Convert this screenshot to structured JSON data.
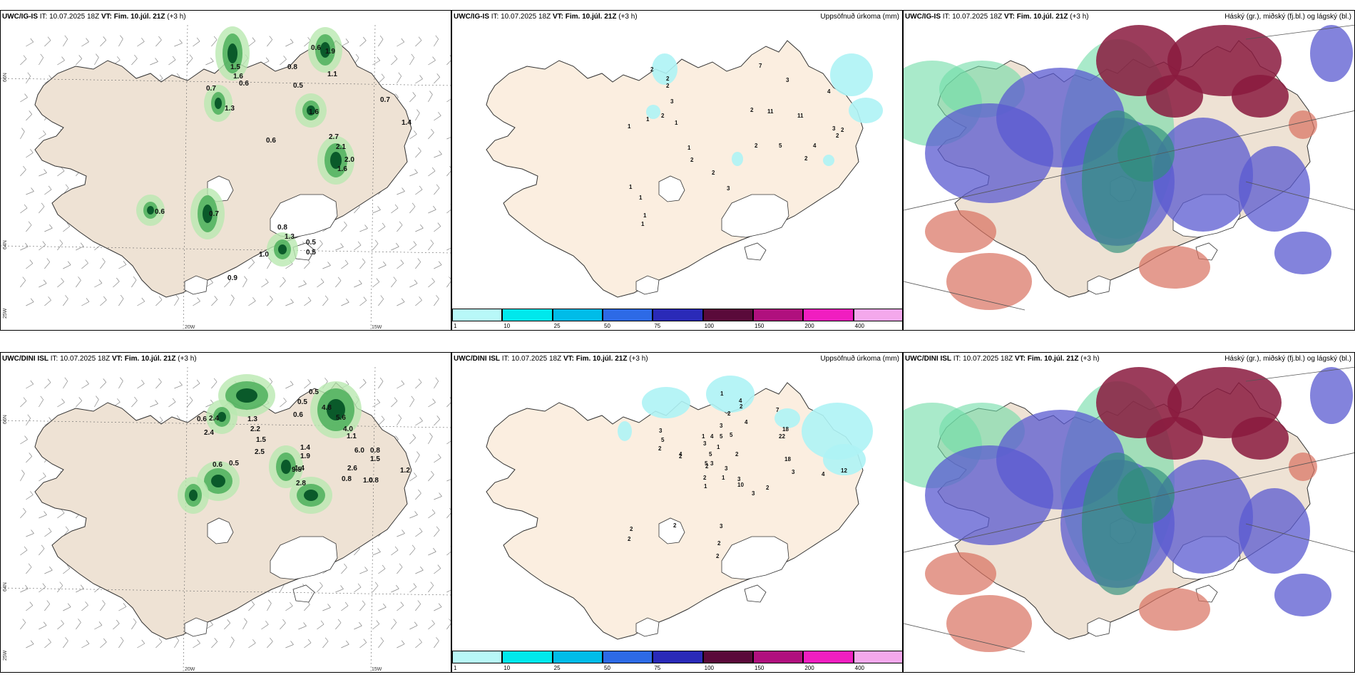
{
  "rows": [
    {
      "wind": {
        "model": "UWC/IG-IS",
        "run": "IT: 10.07.2025 18Z",
        "vt_label": "VT:",
        "vt": "Fim. 10.júl. 21Z",
        "lead": "(+3 h)"
      },
      "precip": {
        "model": "UWC/IG-IS",
        "run": "IT: 10.07.2025 18Z",
        "vt_label": "VT:",
        "vt": "Fim. 10.júl. 21Z",
        "lead": "(+3 h)",
        "right": "Uppsöfnuð úrkoma (mm)"
      },
      "cloud": {
        "model": "UWC/IG-IS",
        "run": "IT: 10.07.2025 18Z",
        "vt_label": "VT:",
        "vt": "Fim. 10.júl. 21Z",
        "lead": "(+3 h)",
        "right": "Háský (gr.), miðský (fj.bl.) og lágský (bl.)"
      },
      "wind_values": [
        "0.6",
        "1.9",
        "1.5",
        "1.6",
        "0.6",
        "0.8",
        "0.7",
        "0.5",
        "1.1",
        "1.3",
        "0.7",
        "1.6",
        "1.4",
        "0.6",
        "2.7",
        "2.1",
        "2.0",
        "1.6",
        "0.6",
        "0.7",
        "0.8",
        "1.3",
        "0.5",
        "0.5",
        "1.0",
        "0.9"
      ],
      "precip_values": [
        "2",
        "2",
        "2",
        "3",
        "1",
        "2",
        "1",
        "1",
        "7",
        "3",
        "4",
        "2",
        "11",
        "11",
        "2",
        "3",
        "4",
        "1",
        "2",
        "2",
        "5",
        "2",
        "2",
        "1",
        "1",
        "3",
        "2",
        "1",
        "1"
      ]
    },
    {
      "wind": {
        "model": "UWC/DINI ISL",
        "run": "IT: 10.07.2025 18Z",
        "vt_label": "VT:",
        "vt": "Fim. 10.júl. 21Z",
        "lead": "(+3 h)"
      },
      "precip": {
        "model": "UWC/DINI ISL",
        "run": "IT: 10.07.2025 18Z",
        "vt_label": "VT:",
        "vt": "Fim. 10.júl. 21Z",
        "lead": "(+3 h)",
        "right": "Uppsöfnuð úrkoma (mm)"
      },
      "cloud": {
        "model": "UWC/DINI ISL",
        "run": "IT: 10.07.2025 18Z",
        "vt_label": "VT:",
        "vt": "Fim. 10.júl. 21Z",
        "lead": "(+3 h)",
        "right": "Háský (gr.), miðský (fj.bl.) og lágský (bl.)"
      },
      "wind_values": [
        "0.5",
        "0.5",
        "0.6",
        "0.6",
        "2.4",
        "2.4",
        "1.3",
        "2.2",
        "1.5",
        "2.5",
        "4.8",
        "5.6",
        "4.0",
        "1.1",
        "0.6",
        "0.5",
        "1.4",
        "1.9",
        "1.4",
        "6.0",
        "0.8",
        "1.5",
        "9.5",
        "2.8",
        "0.8",
        "2.6",
        "1.0",
        "0.8",
        "1.2"
      ],
      "precip_values": [
        "1",
        "2",
        "4",
        "2",
        "4",
        "3",
        "5",
        "4",
        "3",
        "1",
        "1",
        "5",
        "3",
        "5",
        "5",
        "2",
        "3",
        "3",
        "5",
        "2",
        "4",
        "2",
        "1",
        "7",
        "18",
        "22",
        "3",
        "2",
        "18",
        "3",
        "4",
        "12",
        "10",
        "3",
        "2",
        "1",
        "2",
        "2",
        "2",
        "2",
        "3",
        "2",
        "2"
      ]
    }
  ],
  "lat_labels": [
    "66N",
    "64N",
    "66N",
    "64N"
  ],
  "lon_labels": [
    "25W",
    "20W",
    "15W"
  ],
  "precip_scale": [
    "1",
    "10",
    "25",
    "50",
    "75",
    "100",
    "150",
    "200",
    "400"
  ],
  "precip_colors": [
    "#b8f8f8",
    "#00e8ec",
    "#00bce8",
    "#2d6ae6",
    "#2a2ab8",
    "#5a0a3a",
    "#b0107e",
    "#f01ec0",
    "#f4a8ec"
  ],
  "colors": {
    "land": "#eee2d4",
    "land_pale": "#fbeee0",
    "coast": "#333333",
    "cyan": "#aef3f5",
    "green_dark": "#0a5a2a",
    "green_mid": "#4caf5a",
    "green_light": "#b9e9b0",
    "purple": "#5a5ad0",
    "maroon": "#8a1a3e",
    "salmon": "#d87060",
    "teal": "#2e8f7a"
  }
}
